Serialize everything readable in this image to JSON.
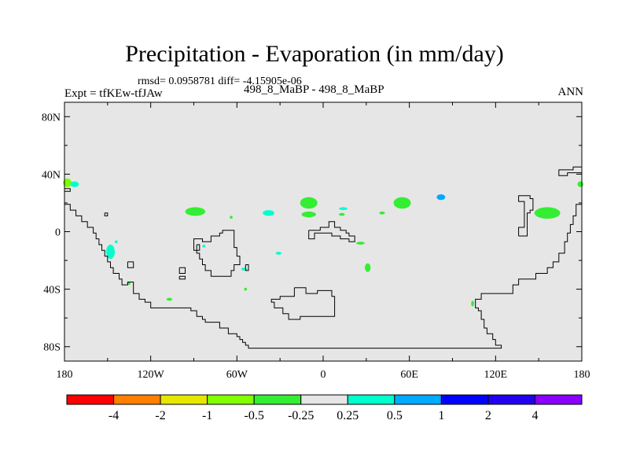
{
  "header": {
    "title": "Precipitation - Evaporation (in mm/day)",
    "stats": "rmsd= 0.0958781 diff= -4.15905e-06",
    "subtitle": "498_8_MaBP - 498_8_MaBP",
    "left_label": "Expt = tfKEw-tfJAw",
    "right_label": "ANN"
  },
  "colors": {
    "map_background": "#e6e6e6",
    "coastline": "#000000"
  },
  "chart_data": {
    "type": "heatmap",
    "title": "Precipitation - Evaporation (in mm/day)",
    "xlim": [
      -180,
      180
    ],
    "ylim": [
      -90,
      90
    ],
    "x_ticks": [
      {
        "value": -180,
        "label": "180"
      },
      {
        "value": -120,
        "label": "120W"
      },
      {
        "value": -60,
        "label": "60W"
      },
      {
        "value": 0,
        "label": "0"
      },
      {
        "value": 60,
        "label": "60E"
      },
      {
        "value": 120,
        "label": "120E"
      },
      {
        "value": 180,
        "label": "180"
      }
    ],
    "y_ticks": [
      {
        "value": 80,
        "label": "80N"
      },
      {
        "value": 40,
        "label": "40N"
      },
      {
        "value": 0,
        "label": "0"
      },
      {
        "value": -40,
        "label": "40S"
      },
      {
        "value": -80,
        "label": "80S"
      }
    ],
    "colorbar": {
      "colors": [
        "#ff0000",
        "#ff8000",
        "#e6e600",
        "#80ff00",
        "#33ee33",
        "#e6e6e6",
        "#00ffcc",
        "#00aaff",
        "#0000ff",
        "#2200ee",
        "#8800ff"
      ],
      "labels": [
        "-4",
        "-2",
        "-1",
        "-0.5",
        "-0.25",
        "0.25",
        "0.5",
        "1",
        "2",
        "4"
      ]
    },
    "anomalies": [
      {
        "lon": -178,
        "lat": 34,
        "rlon": 3,
        "rlat": 3,
        "color": "#80ff00"
      },
      {
        "lon": -173,
        "lat": 33,
        "rlon": 3,
        "rlat": 2,
        "color": "#00ffcc"
      },
      {
        "lon": -89,
        "lat": 14,
        "rlon": 7,
        "rlat": 3,
        "color": "#33ee33"
      },
      {
        "lon": -64,
        "lat": 10,
        "rlon": 1,
        "rlat": 1,
        "color": "#33ee33"
      },
      {
        "lon": -38,
        "lat": 13,
        "rlon": 4,
        "rlat": 2,
        "color": "#00ffcc"
      },
      {
        "lon": -10,
        "lat": 20,
        "rlon": 6,
        "rlat": 4,
        "color": "#33ee33"
      },
      {
        "lon": -10,
        "lat": 12,
        "rlon": 5,
        "rlat": 2,
        "color": "#33ee33"
      },
      {
        "lon": 13,
        "lat": 12,
        "rlon": 2,
        "rlat": 1,
        "color": "#33ee33"
      },
      {
        "lon": 14,
        "lat": 16,
        "rlon": 3,
        "rlat": 1,
        "color": "#00ffcc"
      },
      {
        "lon": 41,
        "lat": 13,
        "rlon": 2,
        "rlat": 1,
        "color": "#33ee33"
      },
      {
        "lon": 55,
        "lat": 20,
        "rlon": 6,
        "rlat": 4,
        "color": "#33ee33"
      },
      {
        "lon": 82,
        "lat": 24,
        "rlon": 3,
        "rlat": 2,
        "color": "#00aaff"
      },
      {
        "lon": 156,
        "lat": 13,
        "rlon": 9,
        "rlat": 4,
        "color": "#33ee33"
      },
      {
        "lon": 179,
        "lat": 33,
        "rlon": 2,
        "rlat": 2,
        "color": "#33ee33"
      },
      {
        "lon": -148,
        "lat": -14,
        "rlon": 3,
        "rlat": 5,
        "color": "#00ffcc"
      },
      {
        "lon": -144,
        "lat": -7,
        "rlon": 1,
        "rlat": 1,
        "color": "#00ffcc"
      },
      {
        "lon": -83,
        "lat": -10,
        "rlon": 1,
        "rlat": 1,
        "color": "#00ffcc"
      },
      {
        "lon": -55,
        "lat": -26,
        "rlon": 2,
        "rlat": 1,
        "color": "#00ffcc"
      },
      {
        "lon": -54,
        "lat": -40,
        "rlon": 1,
        "rlat": 1,
        "color": "#33ee33"
      },
      {
        "lon": -31,
        "lat": -15,
        "rlon": 2,
        "rlat": 1,
        "color": "#00ffcc"
      },
      {
        "lon": 26,
        "lat": -8,
        "rlon": 3,
        "rlat": 1,
        "color": "#33ee33"
      },
      {
        "lon": 31,
        "lat": -25,
        "rlon": 2,
        "rlat": 3,
        "color": "#33ee33"
      },
      {
        "lon": -107,
        "lat": -47,
        "rlon": 2,
        "rlat": 1,
        "color": "#33ee33"
      },
      {
        "lon": -135,
        "lat": -36,
        "rlon": 1,
        "rlat": 1,
        "color": "#33ee33"
      },
      {
        "lon": 104,
        "lat": -50,
        "rlon": 1,
        "rlat": 2,
        "color": "#33ee33"
      }
    ],
    "coastlines": [
      [
        [
          -180,
          19
        ],
        [
          -176,
          19
        ],
        [
          -176,
          15
        ],
        [
          -172,
          15
        ],
        [
          -172,
          11
        ],
        [
          -168,
          11
        ],
        [
          -168,
          7
        ],
        [
          -164,
          7
        ],
        [
          -164,
          3
        ],
        [
          -160,
          3
        ],
        [
          -160,
          -1
        ],
        [
          -158,
          -1
        ],
        [
          -158,
          -5
        ],
        [
          -156,
          -5
        ],
        [
          -156,
          -9
        ],
        [
          -154,
          -9
        ],
        [
          -154,
          -13
        ],
        [
          -152,
          -13
        ],
        [
          -152,
          -17
        ],
        [
          -150,
          -17
        ],
        [
          -150,
          -21
        ],
        [
          -148,
          -21
        ],
        [
          -148,
          -25
        ],
        [
          -146,
          -25
        ],
        [
          -146,
          -29
        ],
        [
          -142,
          -29
        ],
        [
          -142,
          -33
        ],
        [
          -140,
          -33
        ],
        [
          -140,
          -37
        ],
        [
          -136,
          -37
        ],
        [
          -136,
          -35
        ],
        [
          -132,
          -35
        ],
        [
          -132,
          -43
        ],
        [
          -128,
          -43
        ],
        [
          -128,
          -47
        ],
        [
          -124,
          -47
        ],
        [
          -124,
          -49
        ],
        [
          -120,
          -49
        ],
        [
          -120,
          -53
        ],
        [
          -92,
          -53
        ],
        [
          -92,
          -55
        ],
        [
          -88,
          -55
        ],
        [
          -88,
          -59
        ],
        [
          -84,
          -59
        ],
        [
          -84,
          -61
        ],
        [
          -82,
          -61
        ],
        [
          -82,
          -63
        ],
        [
          -72,
          -63
        ],
        [
          -72,
          -67
        ],
        [
          -66,
          -67
        ],
        [
          -66,
          -71
        ],
        [
          -60,
          -71
        ],
        [
          -60,
          -73
        ],
        [
          -58,
          -73
        ],
        [
          -58,
          -75
        ],
        [
          -56,
          -75
        ],
        [
          -56,
          -77
        ],
        [
          -54,
          -77
        ],
        [
          -54,
          -79
        ],
        [
          -52,
          -79
        ],
        [
          -52,
          -81
        ],
        [
          124,
          -81
        ],
        [
          124,
          -79
        ],
        [
          120,
          -79
        ],
        [
          120,
          -75
        ],
        [
          118,
          -75
        ],
        [
          118,
          -71
        ],
        [
          114,
          -71
        ],
        [
          114,
          -67
        ],
        [
          112,
          -67
        ],
        [
          112,
          -61
        ],
        [
          110,
          -61
        ],
        [
          110,
          -55
        ],
        [
          108,
          -55
        ],
        [
          108,
          -53
        ],
        [
          106,
          -53
        ],
        [
          106,
          -47
        ],
        [
          110,
          -47
        ],
        [
          110,
          -43
        ],
        [
          132,
          -43
        ],
        [
          132,
          -37
        ],
        [
          136,
          -37
        ],
        [
          136,
          -33
        ],
        [
          148,
          -33
        ],
        [
          148,
          -29
        ],
        [
          156,
          -29
        ],
        [
          156,
          -25
        ],
        [
          160,
          -25
        ],
        [
          160,
          -21
        ],
        [
          164,
          -21
        ],
        [
          164,
          -15
        ],
        [
          168,
          -15
        ],
        [
          168,
          -7
        ],
        [
          170,
          -7
        ],
        [
          170,
          -1
        ],
        [
          172,
          -1
        ],
        [
          172,
          5
        ],
        [
          174,
          5
        ],
        [
          174,
          11
        ],
        [
          176,
          11
        ],
        [
          176,
          19
        ],
        [
          180,
          19
        ]
      ],
      [
        [
          -180,
          30
        ],
        [
          -176,
          30
        ],
        [
          -176,
          28
        ],
        [
          -180,
          28
        ]
      ],
      [
        [
          -152,
          13
        ],
        [
          -150,
          13
        ],
        [
          -150,
          11
        ],
        [
          -152,
          11
        ],
        [
          -152,
          13
        ]
      ],
      [
        [
          -88,
          -9
        ],
        [
          -86,
          -9
        ],
        [
          -86,
          -13
        ],
        [
          -90,
          -13
        ],
        [
          -90,
          -5
        ],
        [
          -84,
          -5
        ],
        [
          -84,
          -7
        ],
        [
          -78,
          -7
        ],
        [
          -78,
          -3
        ],
        [
          -72,
          -3
        ],
        [
          -72,
          -1
        ],
        [
          -70,
          -1
        ],
        [
          -70,
          1
        ],
        [
          -62,
          1
        ],
        [
          -62,
          -11
        ],
        [
          -60,
          -11
        ],
        [
          -60,
          -17
        ],
        [
          -58,
          -17
        ],
        [
          -58,
          -23
        ],
        [
          -62,
          -23
        ],
        [
          -62,
          -27
        ],
        [
          -64,
          -27
        ],
        [
          -64,
          -31
        ],
        [
          -78,
          -31
        ],
        [
          -78,
          -27
        ],
        [
          -82,
          -27
        ],
        [
          -82,
          -23
        ],
        [
          -84,
          -23
        ],
        [
          -84,
          -19
        ],
        [
          -86,
          -19
        ],
        [
          -86,
          -15
        ],
        [
          -88,
          -15
        ],
        [
          -88,
          -9
        ]
      ],
      [
        [
          -54,
          -23
        ],
        [
          -52,
          -23
        ],
        [
          -52,
          -27
        ],
        [
          -54,
          -27
        ],
        [
          -54,
          -23
        ]
      ],
      [
        [
          -136,
          -21
        ],
        [
          -132,
          -21
        ],
        [
          -132,
          -25
        ],
        [
          -136,
          -25
        ],
        [
          -136,
          -21
        ]
      ],
      [
        [
          -100,
          -25
        ],
        [
          -96,
          -25
        ],
        [
          -96,
          -29
        ],
        [
          -100,
          -29
        ],
        [
          -100,
          -25
        ]
      ],
      [
        [
          -100,
          -31
        ],
        [
          -96,
          -31
        ],
        [
          -96,
          -33
        ],
        [
          -100,
          -33
        ],
        [
          -100,
          -31
        ]
      ],
      [
        [
          -20,
          -39
        ],
        [
          -12,
          -39
        ],
        [
          -12,
          -43
        ],
        [
          -4,
          -43
        ],
        [
          -4,
          -41
        ],
        [
          6,
          -41
        ],
        [
          6,
          -45
        ],
        [
          8,
          -45
        ],
        [
          8,
          -59
        ],
        [
          -16,
          -59
        ],
        [
          -16,
          -61
        ],
        [
          -24,
          -61
        ],
        [
          -24,
          -57
        ],
        [
          -28,
          -57
        ],
        [
          -28,
          -53
        ],
        [
          -34,
          -53
        ],
        [
          -34,
          -49
        ],
        [
          -36,
          -49
        ],
        [
          -36,
          -47
        ],
        [
          -30,
          -47
        ],
        [
          -30,
          -45
        ],
        [
          -20,
          -45
        ],
        [
          -20,
          -39
        ]
      ],
      [
        [
          -10,
          1
        ],
        [
          -2,
          1
        ],
        [
          -2,
          3
        ],
        [
          4,
          3
        ],
        [
          4,
          7
        ],
        [
          8,
          7
        ],
        [
          8,
          3
        ],
        [
          12,
          3
        ],
        [
          12,
          1
        ],
        [
          16,
          1
        ],
        [
          16,
          -1
        ],
        [
          18,
          -1
        ],
        [
          18,
          -3
        ],
        [
          22,
          -3
        ],
        [
          22,
          -7
        ],
        [
          18,
          -7
        ],
        [
          18,
          -5
        ],
        [
          12,
          -5
        ],
        [
          12,
          -3
        ],
        [
          6,
          -3
        ],
        [
          6,
          -1
        ],
        [
          -6,
          -1
        ],
        [
          -6,
          -5
        ],
        [
          -10,
          -5
        ],
        [
          -10,
          1
        ]
      ],
      [
        [
          136,
          -3
        ],
        [
          136,
          3
        ],
        [
          140,
          3
        ],
        [
          140,
          21
        ],
        [
          136,
          21
        ],
        [
          136,
          25
        ],
        [
          144,
          25
        ],
        [
          144,
          23
        ],
        [
          146,
          23
        ],
        [
          146,
          15
        ],
        [
          144,
          15
        ],
        [
          144,
          13
        ],
        [
          142,
          13
        ],
        [
          142,
          -3
        ],
        [
          136,
          -3
        ]
      ],
      [
        [
          180,
          41
        ],
        [
          170,
          41
        ],
        [
          170,
          39
        ],
        [
          164,
          39
        ],
        [
          164,
          43
        ],
        [
          174,
          43
        ],
        [
          174,
          45
        ],
        [
          180,
          45
        ]
      ]
    ]
  }
}
